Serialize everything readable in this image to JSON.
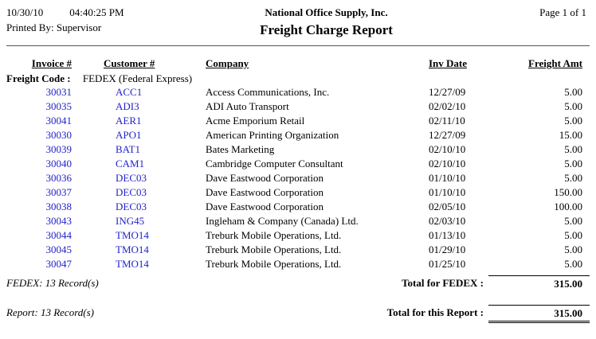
{
  "header": {
    "date": "10/30/10",
    "time": "04:40:25 PM",
    "printed_by": "Printed By: Supervisor",
    "company_name": "National Office Supply, Inc.",
    "report_title": "Freight Charge Report",
    "page_info": "Page 1 of 1"
  },
  "columns": {
    "invoice": "Invoice #",
    "customer": "Customer #",
    "company": "Company",
    "inv_date": "Inv Date",
    "freight_amt": "Freight Amt"
  },
  "group": {
    "label": "Freight Code :",
    "value": "FEDEX (Federal Express)"
  },
  "rows": [
    {
      "invoice": "30031",
      "customer": "ACC1",
      "company": "Access Communications, Inc.",
      "inv_date": "12/27/09",
      "freight_amt": "5.00"
    },
    {
      "invoice": "30035",
      "customer": "ADI3",
      "company": "ADI Auto Transport",
      "inv_date": "02/02/10",
      "freight_amt": "5.00"
    },
    {
      "invoice": "30041",
      "customer": "AER1",
      "company": "Acme Emporium Retail",
      "inv_date": "02/11/10",
      "freight_amt": "5.00"
    },
    {
      "invoice": "30030",
      "customer": "APO1",
      "company": "American Printing Organization",
      "inv_date": "12/27/09",
      "freight_amt": "15.00"
    },
    {
      "invoice": "30039",
      "customer": "BAT1",
      "company": "Bates Marketing",
      "inv_date": "02/10/10",
      "freight_amt": "5.00"
    },
    {
      "invoice": "30040",
      "customer": "CAM1",
      "company": "Cambridge Computer Consultant",
      "inv_date": "02/10/10",
      "freight_amt": "5.00"
    },
    {
      "invoice": "30036",
      "customer": "DEC03",
      "company": "Dave Eastwood Corporation",
      "inv_date": "01/10/10",
      "freight_amt": "5.00"
    },
    {
      "invoice": "30037",
      "customer": "DEC03",
      "company": "Dave Eastwood Corporation",
      "inv_date": "01/10/10",
      "freight_amt": "150.00"
    },
    {
      "invoice": "30038",
      "customer": "DEC03",
      "company": "Dave Eastwood Corporation",
      "inv_date": "02/05/10",
      "freight_amt": "100.00"
    },
    {
      "invoice": "30043",
      "customer": "ING45",
      "company": "Ingleham & Company (Canada) Ltd.",
      "inv_date": "02/03/10",
      "freight_amt": "5.00"
    },
    {
      "invoice": "30044",
      "customer": "TMO14",
      "company": "Treburk Mobile Operations, Ltd.",
      "inv_date": "01/13/10",
      "freight_amt": "5.00"
    },
    {
      "invoice": "30045",
      "customer": "TMO14",
      "company": "Treburk Mobile Operations, Ltd.",
      "inv_date": "01/29/10",
      "freight_amt": "5.00"
    },
    {
      "invoice": "30047",
      "customer": "TMO14",
      "company": "Treburk Mobile Operations, Ltd.",
      "inv_date": "01/25/10",
      "freight_amt": "5.00"
    }
  ],
  "group_footer": {
    "record_count": "FEDEX: 13 Record(s)",
    "total_label": "Total for FEDEX :",
    "total_amount": "315.00"
  },
  "report_footer": {
    "record_count": "Report: 13 Record(s)",
    "total_label": "Total for this Report :",
    "total_amount": "315.00"
  },
  "colors": {
    "link_blue": "#2222CC"
  }
}
